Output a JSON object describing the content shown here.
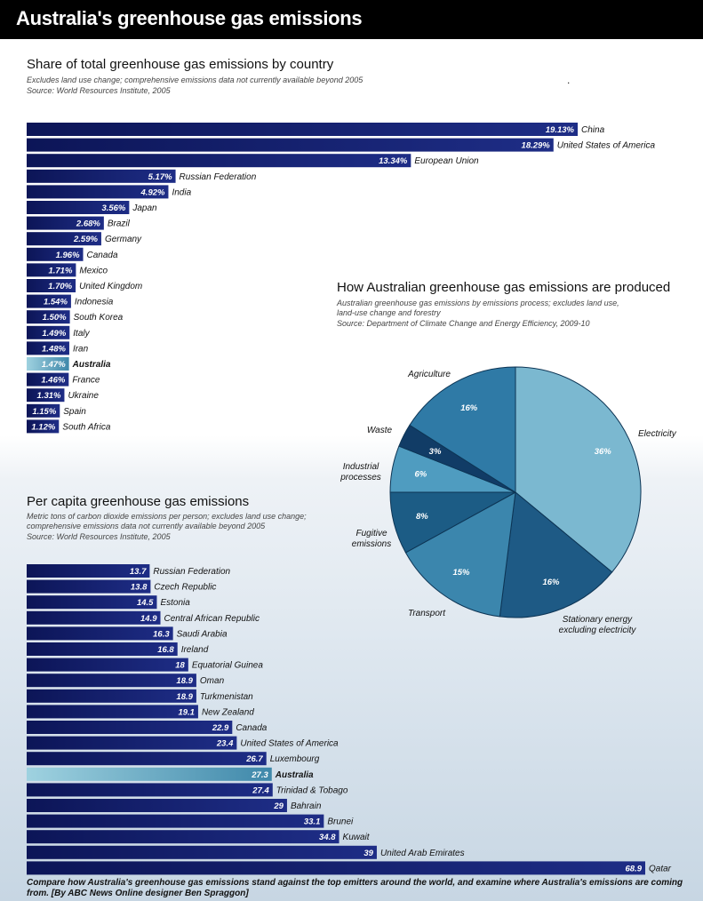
{
  "page": {
    "title": "Australia's greenhouse gas emissions",
    "caption": "Compare how Australia's greenhouse gas emissions stand against the top emitters around the world, and examine where Australia's emissions are coming from.  [By ABC News Online designer Ben Spraggon]"
  },
  "colors": {
    "bar_dark": "#0c1557",
    "bar_mid": "#1e2d86",
    "highlight": "#6fb3c9",
    "pie_electricity": "#7bb8d0",
    "pie_stationary": "#1e5a85",
    "pie_transport": "#3b86ad",
    "pie_fugitive": "#1c5c85",
    "pie_industrial": "#4f9cc0",
    "pie_waste": "#113c66",
    "pie_agriculture": "#2f7aa6"
  },
  "chart_data": [
    {
      "type": "bar",
      "orientation": "horizontal",
      "title": "Share of total greenhouse gas emissions by country",
      "subtitle": "Excludes land use change; comprehensive emissions data not currently available beyond 2005",
      "source": "Source: World Resources Institute, 2005",
      "highlight": "Australia",
      "categories": [
        "China",
        "United States of America",
        "European Union",
        "Russian Federation",
        "India",
        "Japan",
        "Brazil",
        "Germany",
        "Canada",
        "Mexico",
        "United Kingdom",
        "Indonesia",
        "South Korea",
        "Italy",
        "Iran",
        "Australia",
        "France",
        "Ukraine",
        "Spain",
        "South Africa"
      ],
      "values": [
        19.13,
        18.29,
        13.34,
        5.17,
        4.92,
        3.56,
        2.68,
        2.59,
        1.96,
        1.71,
        1.7,
        1.54,
        1.5,
        1.49,
        1.48,
        1.47,
        1.46,
        1.31,
        1.15,
        1.12
      ],
      "value_labels": [
        "19.13%",
        "18.29%",
        "13.34%",
        "5.17%",
        "4.92%",
        "3.56%",
        "2.68%",
        "2.59%",
        "1.96%",
        "1.71%",
        "1.70%",
        "1.54%",
        "1.50%",
        "1.49%",
        "1.48%",
        "1.47%",
        "1.46%",
        "1.31%",
        "1.15%",
        "1.12%"
      ],
      "unit": "%"
    },
    {
      "type": "pie",
      "title": "How Australian greenhouse gas emissions are produced",
      "subtitle": "Australian greenhouse gas emissions by emissions process; excludes land use, land-use change and forestry",
      "source": "Source: Department of Climate Change and Energy Efficiency, 2009-10",
      "slices": [
        {
          "label": "Electricity",
          "value": 36,
          "value_label": "36%"
        },
        {
          "label": "Stationary energy excluding electricity",
          "value": 16,
          "value_label": "16%"
        },
        {
          "label": "Transport",
          "value": 15,
          "value_label": "15%"
        },
        {
          "label": "Fugitive emissions",
          "value": 8,
          "value_label": "8%"
        },
        {
          "label": "Industrial processes",
          "value": 6,
          "value_label": "6%"
        },
        {
          "label": "Waste",
          "value": 3,
          "value_label": "3%"
        },
        {
          "label": "Agriculture",
          "value": 16,
          "value_label": "16%"
        }
      ]
    },
    {
      "type": "bar",
      "orientation": "horizontal",
      "title": "Per capita greenhouse gas emissions",
      "subtitle": "Metric tons of carbon dioxide emissions per person; excludes land use change; comprehensive emissions data not currently available beyond 2005",
      "source": "Source: World Resources Institute, 2005",
      "highlight": "Australia",
      "categories": [
        "Russian Federation",
        "Czech Republic",
        "Estonia",
        "Central African Republic",
        "Saudi Arabia",
        "Ireland",
        "Equatorial Guinea",
        "Oman",
        "Turkmenistan",
        "New Zealand",
        "Canada",
        "United States of America",
        "Luxembourg",
        "Australia",
        "Trinidad & Tobago",
        "Bahrain",
        "Brunei",
        "Kuwait",
        "United Arab Emirates",
        "Qatar"
      ],
      "values": [
        13.7,
        13.8,
        14.5,
        14.9,
        16.3,
        16.8,
        18,
        18.9,
        18.9,
        19.1,
        22.9,
        23.4,
        26.7,
        27.3,
        27.4,
        29,
        33.1,
        34.8,
        39,
        68.9
      ],
      "value_labels": [
        "13.7",
        "13.8",
        "14.5",
        "14.9",
        "16.3",
        "16.8",
        "18",
        "18.9",
        "18.9",
        "19.1",
        "22.9",
        "23.4",
        "26.7",
        "27.3",
        "27.4",
        "29",
        "33.1",
        "34.8",
        "39",
        "68.9"
      ]
    }
  ]
}
